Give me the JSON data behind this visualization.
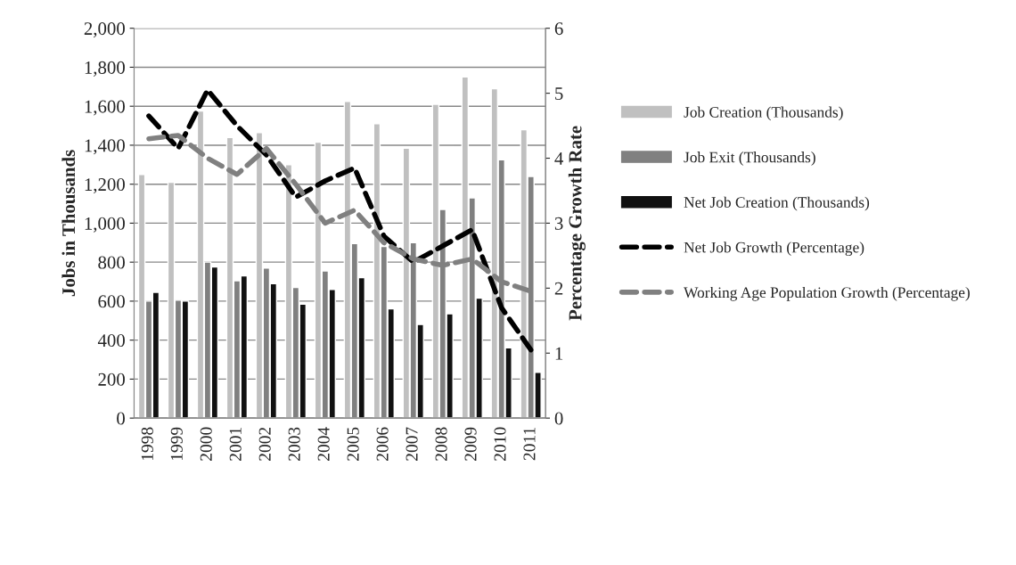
{
  "chart_data": {
    "type": "bar",
    "ylabel": "Jobs in Thousands",
    "y2label": "Percentage Growth Rate",
    "categories": [
      "1998",
      "1999",
      "2000",
      "2001",
      "2002",
      "2003",
      "2004",
      "2005",
      "2006",
      "2007",
      "2008",
      "2009",
      "2010",
      "2011"
    ],
    "series": [
      {
        "name": "Job Creation (Thousands)",
        "color": "#c0c0c0",
        "values": [
          1250,
          1210,
          1575,
          1440,
          1465,
          1300,
          1415,
          1625,
          1510,
          1385,
          1610,
          1750,
          1690,
          1480
        ]
      },
      {
        "name": "Job Exit (Thousands)",
        "color": "#808080",
        "values": [
          600,
          605,
          800,
          705,
          770,
          670,
          755,
          895,
          880,
          900,
          1070,
          1130,
          1325,
          1240
        ]
      },
      {
        "name": "Net Job Creation (Thousands)",
        "color": "#111111",
        "values": [
          645,
          600,
          775,
          730,
          690,
          585,
          660,
          720,
          560,
          480,
          535,
          615,
          360,
          235
        ]
      },
      {
        "name": "Net Job Growth (Percentage)",
        "type": "line",
        "axis": "y2",
        "line_style": "dashed",
        "color": "#000000",
        "values": [
          4.65,
          4.15,
          5.05,
          4.5,
          4.05,
          3.4,
          3.65,
          3.85,
          2.8,
          2.4,
          2.65,
          2.9,
          1.7,
          1.05
        ]
      },
      {
        "name": "Working Age Population Growth (Percentage)",
        "type": "line",
        "axis": "y2",
        "line_style": "dashed",
        "color": "#808080",
        "values": [
          4.3,
          4.35,
          4.0,
          3.75,
          4.15,
          3.6,
          3.0,
          3.2,
          2.7,
          2.45,
          2.35,
          2.45,
          2.1,
          1.95
        ]
      }
    ],
    "ylim": [
      0,
      2000
    ],
    "yticks": [
      0,
      {
        "value": 200,
        "label": "200"
      },
      {
        "value": 400,
        "label": "400"
      },
      {
        "value": 600,
        "label": "600"
      },
      {
        "value": 800,
        "label": "800"
      },
      {
        "value": 1000,
        "label": "1,000"
      },
      {
        "value": 1200,
        "label": "1,200"
      },
      {
        "value": 1400,
        "label": "1,400"
      },
      {
        "value": 1600,
        "label": "1,600"
      },
      {
        "value": 1800,
        "label": "1,800"
      },
      {
        "value": 2000,
        "label": "2,000"
      }
    ],
    "y2lim": [
      0,
      6
    ],
    "y2ticks": [
      0,
      1,
      2,
      3,
      4,
      5,
      6
    ],
    "grid": "y",
    "legend": "right"
  }
}
